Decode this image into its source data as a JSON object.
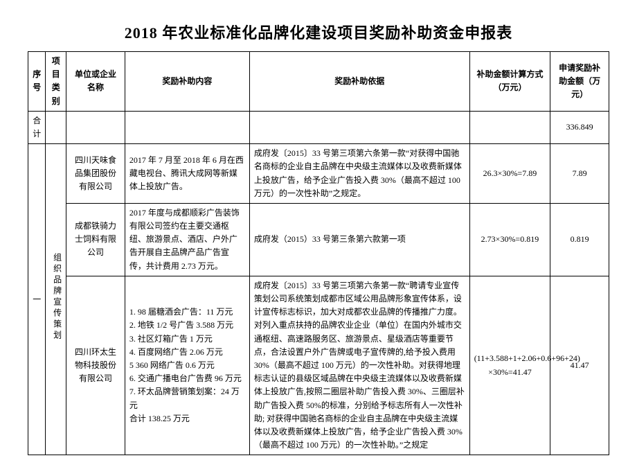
{
  "title": "2018 年农业标准化品牌化建设项目奖励补助资金申报表",
  "columns": {
    "seq": "序号",
    "category": "项目类别",
    "company": "单位或企业名称",
    "content": "奖励补助内容",
    "basis": "奖励补助依据",
    "calc": "补助金额计算方式（万元）",
    "amount": "申请奖励补助金额（万元）"
  },
  "total_label": "合计",
  "total_amount": "336.849",
  "section": {
    "seq": "一",
    "category": "组织品牌宣传策划",
    "rows": [
      {
        "company": "四川天味食品集团股份有限公司",
        "content": "2017 年 7 月至 2018 年 6 月在西藏电视台、腾讯大成网等新媒体上投放广告。",
        "basis": "成府发〔2015〕33 号第三项第六条第一款“对获得中国驰名商标的企业自主品牌在中央级主流媒体以及收费新媒体上投放广告，给予企业广告投入费 30%（最高不超过 100 万元）的一次性补助”之规定。",
        "calc": "26.3×30%=7.89",
        "amount": "7.89"
      },
      {
        "company": "成都铁骑力士饲料有限公司",
        "content": "2017 年度与成都顺彩广告装饰有限公司签约在主要交通枢纽、旅游景点、酒店、户外广告开展自主品牌产品广告宣传，共计费用 2.73 万元。",
        "basis": "成府发（2015）33 号第三条第六款第一项",
        "calc": "2.73×30%=0.819",
        "amount": "0.819"
      },
      {
        "company": "四川环太生物科技股份有限公司",
        "content": "1. 98 届糖酒会广告：11 万元\n2. 地铁 1/2 号广告 3.588 万元\n3. 社区灯箱广告 1 万元\n4. 百度网络广告 2.06 万元\n5  360 网络广告 0.6 万元\n6. 交通广播电台广告费 96 万元\n7. 环太品牌营销策划案：24 万元\n合计 138.25 万元",
        "basis": "成府发〔2015〕33 号第三项第六条第一款“聘请专业宣传策划公司系统策划成都市区域公用品牌形象宣传体系，设计宣传标志标识，加大对成都农业品牌的传播推广力度。对列入重点扶持的品牌农业企业（单位）在国内外城市交通枢纽、高速路服务区、旅游景点、星级酒店等重要节点，合法设置户外广告牌或电子宣传牌的,给予投入费用 30%（最高不超过 100 万元）的一次性补助。对获得地理标志认证的县级区域品牌在中央级主流媒体以及收费新媒体上投放广告,按照二圈层补助广告投入费 30%、三圈层补助广告投入费 50%的标准，分别给予标志所有人一次性补助; 对获得中国驰名商标的企业自主品牌在中央级主流媒体以及收费新媒体上投放广告，给予企业广告投入费 30%（最高不超过 100 万元）的一次性补助。”之规定",
        "calc": "(11+3.588+1+2.06+0.6+96+24) ×30%=41.47",
        "amount": "41.47"
      }
    ]
  }
}
